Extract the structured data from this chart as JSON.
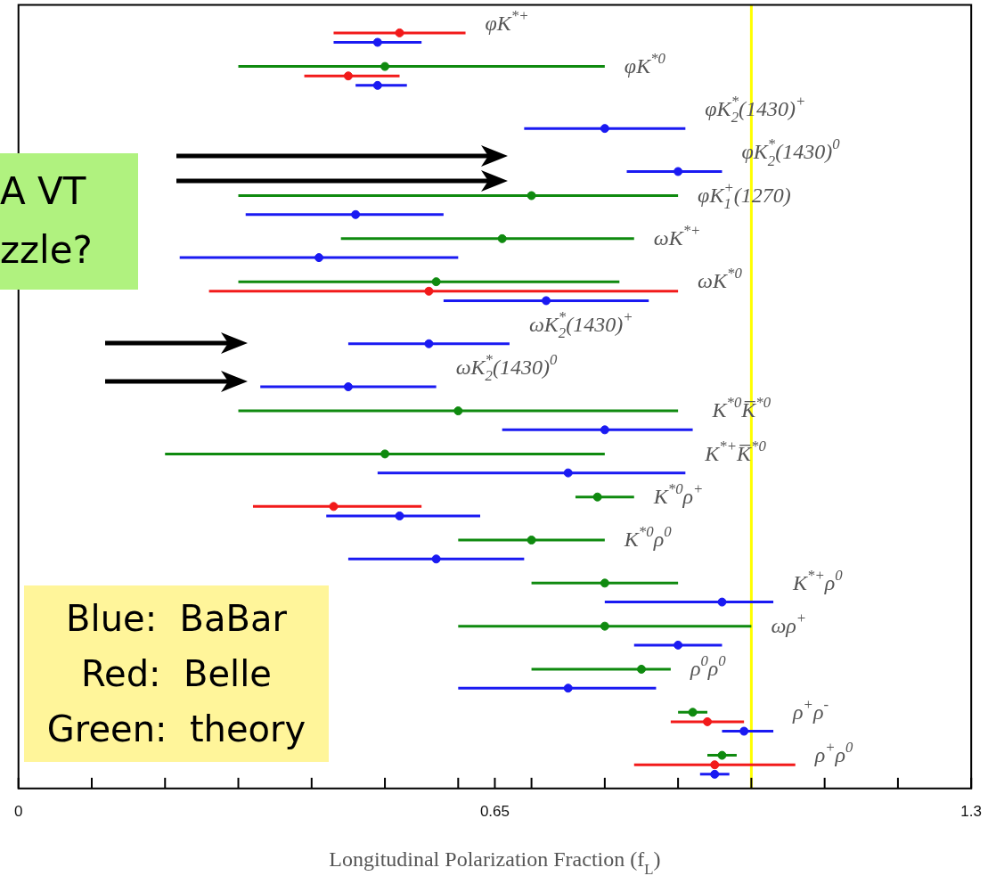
{
  "chart_data": {
    "type": "scatter",
    "orientation": "horizontal",
    "xlabel": "Longitudinal Polarization Fraction (f$_{L}$)",
    "categories": [
      "φK$^{*+}$",
      "φK$^{*0}$",
      "φK$_{2}$$^{*}$(1430)$^{+}$",
      "φK$_{2}$$^{*}$(1430)$^{0}$",
      "φK$_{1}$$^{+}$(1270)",
      "ωK$^{*+}$",
      "ωK$^{*0}$",
      "ωK$_{2}$$^{*}$(1430)$^{+}$",
      "ωK$_{2}$$^{*}$(1430)$^{0}$",
      "K$^{*0}$K̅$^{*0}$",
      "K$^{*+}$K̅$^{*0}$",
      "K$^{*0}$ρ$^{+}$",
      "K$^{*0}$ρ$^{0}$",
      "K$^{*+}$ρ$^{0}$",
      "ωρ$^{+}$",
      "ρ$^{0}$ρ$^{0}$",
      "ρ$^{+}$ρ$^{-}$",
      "ρ$^{+}$ρ$^{0}$"
    ],
    "series": [
      {
        "color": "#0f8a0f",
        "values": [
          null,
          0.5,
          null,
          null,
          0.7,
          0.66,
          0.57,
          null,
          null,
          0.6,
          0.5,
          0.79,
          0.7,
          0.8,
          0.8,
          0.85,
          0.92,
          0.96
        ],
        "errors": [
          null,
          [
            0.3,
            0.8
          ],
          null,
          null,
          [
            0.3,
            0.9
          ],
          [
            0.44,
            0.84
          ],
          [
            0.3,
            0.82
          ],
          null,
          null,
          [
            0.3,
            0.9
          ],
          [
            0.2,
            0.8
          ],
          [
            0.76,
            0.84
          ],
          [
            0.6,
            0.8
          ],
          [
            0.7,
            0.9
          ],
          [
            0.6,
            1.0
          ],
          [
            0.7,
            0.89
          ],
          [
            0.9,
            0.94
          ],
          [
            0.94,
            0.98
          ]
        ]
      },
      {
        "color": "#f21a1a",
        "values": [
          0.52,
          0.45,
          null,
          null,
          null,
          null,
          0.56,
          null,
          null,
          null,
          null,
          0.43,
          null,
          null,
          null,
          null,
          0.94,
          0.95
        ],
        "errors": [
          [
            0.43,
            0.61
          ],
          [
            0.39,
            0.52
          ],
          null,
          null,
          null,
          null,
          [
            0.26,
            0.9
          ],
          null,
          null,
          null,
          null,
          [
            0.32,
            0.55
          ],
          null,
          null,
          null,
          null,
          [
            0.89,
            0.99
          ],
          [
            0.84,
            1.06
          ]
        ]
      },
      {
        "color": "#1a1af2",
        "values": [
          0.49,
          0.49,
          0.8,
          0.9,
          0.46,
          0.41,
          0.72,
          0.56,
          0.45,
          0.8,
          0.75,
          0.52,
          0.57,
          0.96,
          0.9,
          0.75,
          0.99,
          0.95
        ],
        "errors": [
          [
            0.43,
            0.55
          ],
          [
            0.46,
            0.53
          ],
          [
            0.69,
            0.91
          ],
          [
            0.83,
            0.96
          ],
          [
            0.31,
            0.58
          ],
          [
            0.22,
            0.6
          ],
          [
            0.58,
            0.86
          ],
          [
            0.45,
            0.67
          ],
          [
            0.33,
            0.57
          ],
          [
            0.66,
            0.92
          ],
          [
            0.49,
            0.91
          ],
          [
            0.42,
            0.63
          ],
          [
            0.45,
            0.69
          ],
          [
            0.8,
            1.03
          ],
          [
            0.84,
            0.96
          ],
          [
            0.6,
            0.87
          ],
          [
            0.96,
            1.03
          ],
          [
            0.93,
            0.97
          ]
        ]
      }
    ],
    "xlim": [
      0,
      1.3
    ],
    "xticks": [
      0,
      {
        "value": 0.1,
        "label": null
      },
      {
        "value": 0.2,
        "label": null
      },
      {
        "value": 0.3,
        "label": null
      },
      {
        "value": 0.4,
        "label": null
      },
      {
        "value": 0.5,
        "label": null
      },
      {
        "value": 0.6,
        "label": null
      },
      0.65,
      {
        "value": 0.7,
        "label": null
      },
      {
        "value": 0.8,
        "label": null
      },
      {
        "value": 0.9,
        "label": null
      },
      {
        "value": 1.0,
        "label": null
      },
      {
        "value": 1.1,
        "label": null
      },
      {
        "value": 1.2,
        "label": null
      },
      1.3
    ],
    "ref_lines": [
      {
        "axis": "x",
        "value": 1,
        "color": "#ffff00"
      }
    ],
    "annotations": [
      "A VT",
      "zzle?",
      "Blue:  BaBar",
      "Red:  Belle",
      "Green:  theory"
    ],
    "marker": "circle",
    "legend": false,
    "grid": false,
    "tick_labels": "x"
  }
}
